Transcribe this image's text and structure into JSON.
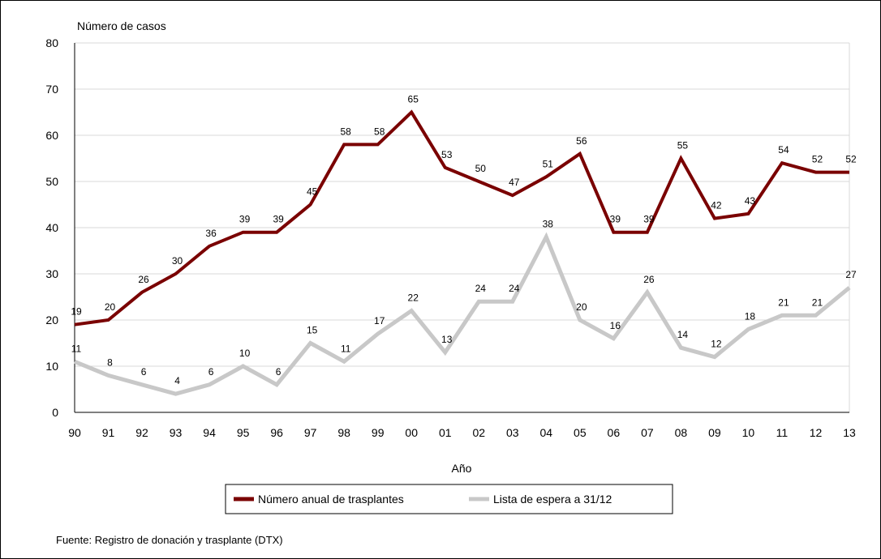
{
  "colors": {
    "series_1": "#7a0000",
    "series_2": "#c8c8c8",
    "grid": "#d9d9d9",
    "axis": "#000000"
  },
  "source": "Fuente: Registro de donación y  trasplante (DTX)",
  "chart_data": {
    "type": "line",
    "title": "",
    "ylabel": "Número de casos",
    "xlabel": "Año",
    "ylim": [
      0,
      80
    ],
    "yticks": [
      0,
      10,
      20,
      30,
      40,
      50,
      60,
      70,
      80
    ],
    "grid": true,
    "legend_position": "bottom",
    "categories": [
      "90",
      "91",
      "92",
      "93",
      "94",
      "95",
      "96",
      "97",
      "98",
      "99",
      "00",
      "01",
      "02",
      "03",
      "04",
      "05",
      "06",
      "07",
      "08",
      "09",
      "10",
      "11",
      "12",
      "13"
    ],
    "series": [
      {
        "name": "Número anual de trasplantes",
        "color": "#7a0000",
        "values": [
          19,
          20,
          26,
          30,
          36,
          39,
          39,
          45,
          58,
          58,
          65,
          53,
          50,
          47,
          51,
          56,
          39,
          39,
          55,
          42,
          43,
          54,
          52,
          52
        ]
      },
      {
        "name": "Lista de espera a 31/12",
        "color": "#c8c8c8",
        "values": [
          11,
          8,
          6,
          4,
          6,
          10,
          6,
          15,
          11,
          17,
          22,
          13,
          24,
          24,
          38,
          20,
          16,
          26,
          14,
          12,
          18,
          21,
          21,
          27
        ]
      }
    ]
  }
}
